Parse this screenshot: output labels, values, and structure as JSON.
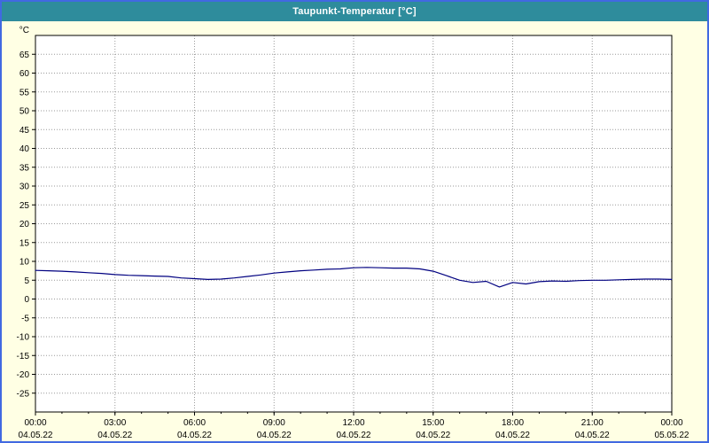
{
  "header": {
    "title": "Taupunkt-Temperatur [°C]",
    "background": "#2E8C9C",
    "text_color": "#FFFFFF"
  },
  "window": {
    "background": "#FFFFE4",
    "border_color": "#4169E1"
  },
  "chart_data": {
    "type": "line",
    "title": "Taupunkt-Temperatur [°C]",
    "xlabel": "",
    "ylabel": "°C",
    "ylim": [
      -30,
      70
    ],
    "yticks": [
      65,
      60,
      55,
      50,
      45,
      40,
      35,
      30,
      25,
      20,
      15,
      10,
      5,
      0,
      -5,
      -10,
      -15,
      -20,
      -25
    ],
    "xlim": [
      0,
      24
    ],
    "xticks": [
      0,
      3,
      6,
      9,
      12,
      15,
      18,
      21,
      24
    ],
    "xtick_labels": [
      "00:00",
      "03:00",
      "06:00",
      "09:00",
      "12:00",
      "15:00",
      "18:00",
      "21:00",
      "00:00"
    ],
    "xtick_dates": [
      "04.05.22",
      "04.05.22",
      "04.05.22",
      "04.05.22",
      "04.05.22",
      "04.05.22",
      "04.05.22",
      "04.05.22",
      "05.05.22"
    ],
    "grid": true,
    "legend": "none",
    "line_color": "#000080",
    "grid_color": "#9a9a9a",
    "series": [
      {
        "name": "Taupunkt-Temperatur",
        "x": [
          0,
          0.5,
          1,
          1.5,
          2,
          2.5,
          3,
          3.5,
          4,
          4.5,
          5,
          5.5,
          6,
          6.5,
          7,
          7.5,
          8,
          8.5,
          9,
          9.5,
          10,
          10.5,
          11,
          11.5,
          12,
          12.5,
          13,
          13.5,
          14,
          14.5,
          15,
          15.5,
          16,
          16.5,
          17,
          17.5,
          18,
          18.5,
          19,
          19.5,
          20,
          20.5,
          21,
          21.5,
          22,
          22.5,
          23,
          23.5,
          24
        ],
        "y": [
          7.6,
          7.5,
          7.4,
          7.2,
          7.0,
          6.8,
          6.5,
          6.3,
          6.2,
          6.1,
          6.0,
          5.6,
          5.4,
          5.2,
          5.3,
          5.6,
          6.0,
          6.4,
          6.9,
          7.2,
          7.5,
          7.7,
          7.9,
          8.0,
          8.3,
          8.4,
          8.3,
          8.2,
          8.2,
          8.0,
          7.4,
          6.2,
          5.0,
          4.4,
          4.7,
          3.2,
          4.4,
          4.0,
          4.6,
          4.8,
          4.7,
          4.9,
          5.0,
          5.0,
          5.1,
          5.2,
          5.3,
          5.3,
          5.2
        ]
      }
    ]
  }
}
